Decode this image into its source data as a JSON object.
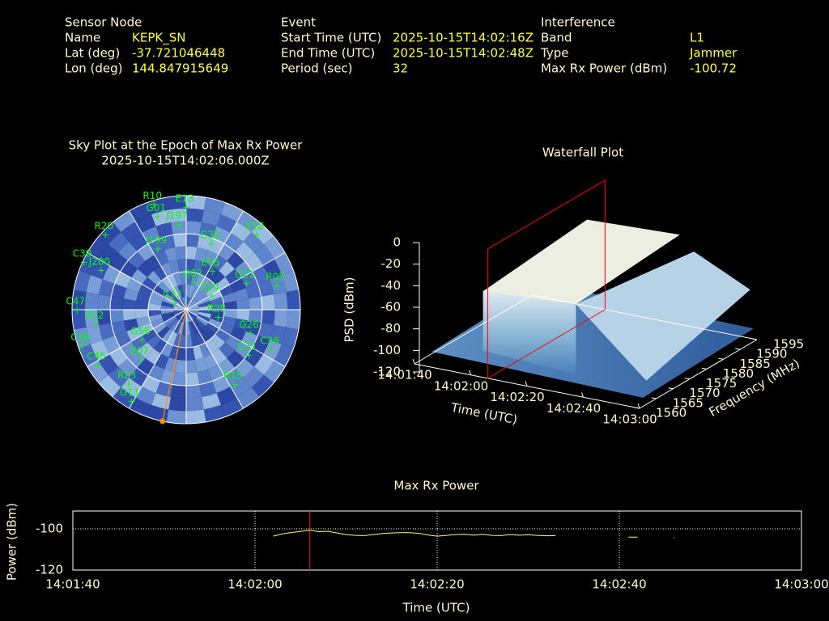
{
  "header": {
    "sections": [
      {
        "title": "Sensor Node",
        "rows": [
          {
            "label": "Name",
            "value": "KEPK_SN"
          },
          {
            "label": "Lat (deg)",
            "value": "-37.721046448"
          },
          {
            "label": "Lon (deg)",
            "value": "144.847915649"
          }
        ]
      },
      {
        "title": "Event",
        "rows": [
          {
            "label": "Start Time (UTC)",
            "value": "2025-10-15T14:02:16Z"
          },
          {
            "label": "End Time (UTC)",
            "value": "2025-10-15T14:02:48Z"
          },
          {
            "label": "Period (sec)",
            "value": "32"
          }
        ]
      },
      {
        "title": "Interference",
        "rows": [
          {
            "label": "Band",
            "value": "L1"
          },
          {
            "label": "Type",
            "value": "Jammer"
          },
          {
            "label": "Max Rx Power (dBm)",
            "value": "-100.72"
          }
        ]
      }
    ]
  },
  "chart_data": [
    {
      "type": "polar",
      "title": "Sky Plot at the Epoch of Max Rx Power",
      "subtitle": "2025-10-15T14:02:06.000Z",
      "rings": [
        0,
        30,
        60
      ],
      "color": "#00ff00",
      "categories": [
        "R10",
        "E13",
        "G01",
        "J197",
        "R20",
        "E18",
        "G32",
        "J199",
        "C30",
        "J200",
        "E55",
        "G03",
        "G21",
        "R05",
        "E24",
        "C47",
        "R22",
        "R25",
        "G26",
        "C38",
        "G56",
        "C36",
        "E07",
        "C45",
        "G31",
        "R23",
        "R15",
        "G11",
        "C27"
      ],
      "azimuth": [
        343,
        0,
        343,
        355,
        313,
        43,
        21,
        335,
        295,
        295,
        34,
        16,
        66,
        75,
        61,
        270,
        261,
        103,
        110,
        115,
        236,
        251,
        222,
        238,
        126,
        218,
        147,
        211,
        298
      ],
      "elevation": [
        3,
        9,
        13,
        22,
        3,
        9,
        34,
        37,
        1,
        16,
        53,
        67,
        38,
        16,
        67,
        4,
        18,
        64,
        36,
        16,
        48,
        3,
        37,
        8,
        29,
        16,
        20,
        6,
        79
      ],
      "interference": {
        "azimuth": 192,
        "elevation": 0,
        "color": "#ff8c00"
      }
    },
    {
      "type": "surface3d",
      "title": "Waterfall Plot",
      "xlabel": "Time (UTC)",
      "ylabel": "Frequency (MHz)",
      "zlabel": "PSD (dBm)",
      "xlim": [
        "14:01:40",
        "14:03:00"
      ],
      "xticks": [
        "14:01:40",
        "14:02:00",
        "14:02:20",
        "14:02:40",
        "14:03:00"
      ],
      "ylim": [
        1560,
        1595
      ],
      "yticks": [
        1560,
        1565,
        1570,
        1575,
        1580,
        1585,
        1590,
        1595
      ],
      "zlim": [
        -120,
        0
      ],
      "zticks": [
        0,
        -20,
        -40,
        -60,
        -80,
        -100,
        -120
      ],
      "marker_time": "14:02:06",
      "marker_color": "#ff0000"
    },
    {
      "type": "line",
      "title": "Max Rx Power",
      "xlabel": "Time (UTC)",
      "ylabel": "Power (dBm)",
      "xlim": [
        "14:01:40",
        "14:03:00"
      ],
      "xticks": [
        "14:01:40",
        "14:02:00",
        "14:02:20",
        "14:02:40",
        "14:03:00"
      ],
      "ylim": [
        -120,
        -91.4
      ],
      "yticks": [
        -100,
        -120
      ],
      "grid": true,
      "marker_time": "14:02:06",
      "marker_color": "#ff0000",
      "x": [
        "14:02:02",
        "14:02:03",
        "14:02:04",
        "14:02:05",
        "14:02:06",
        "14:02:07",
        "14:02:08",
        "14:02:09",
        "14:02:10",
        "14:02:11",
        "14:02:12",
        "14:02:13",
        "14:02:14",
        "14:02:15",
        "14:02:16",
        "14:02:17",
        "14:02:18",
        "14:02:19",
        "14:02:20",
        "14:02:21",
        "14:02:22",
        "14:02:23",
        "14:02:24",
        "14:02:25",
        "14:02:26",
        "14:02:27",
        "14:02:28",
        "14:02:29",
        "14:02:30",
        "14:02:31",
        "14:02:32",
        "14:02:33",
        "14:02:34",
        "14:02:41",
        "14:02:42",
        "14:02:43",
        "14:02:46"
      ],
      "series": [
        {
          "color": "#ffff66",
          "values": [
            -103.5,
            -102.5,
            -101.8,
            -101.3,
            -100.7,
            -101.4,
            -101.2,
            -102.0,
            -102.8,
            -103.2,
            -103.3,
            -102.8,
            -102.3,
            -102.0,
            -101.9,
            -101.9,
            -102.2,
            -103.0,
            -103.6,
            -103.2,
            -102.8,
            -102.6,
            -103.1,
            -102.7,
            -103.2,
            -103.3,
            -102.8,
            -103.1,
            -102.9,
            -103.2,
            -103.4,
            -103.3,
            null,
            -104.0,
            -104.0,
            null,
            -104.3
          ]
        }
      ]
    }
  ]
}
